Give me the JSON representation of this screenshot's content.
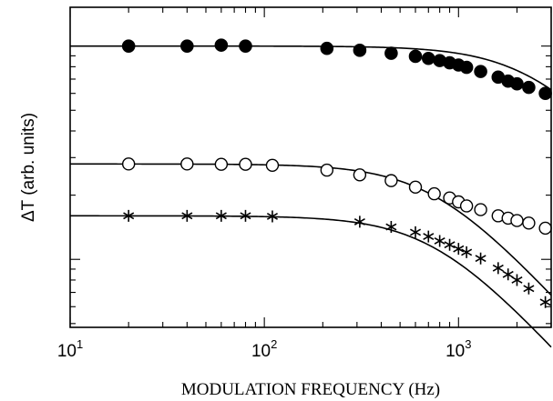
{
  "chart_data": {
    "type": "scatter",
    "title": "",
    "xlabel": "MODULATION FREQUENCY (Hz)",
    "ylabel": "ΔT (arb. units)",
    "xscale": "log",
    "yscale": "log",
    "xlim": [
      10,
      3000
    ],
    "x_ticks": [
      {
        "value": 10,
        "base": "10",
        "exp": "1"
      },
      {
        "value": 100,
        "base": "10",
        "exp": "2"
      },
      {
        "value": 1000,
        "base": "10",
        "exp": "3"
      }
    ],
    "y_tick_labels": "none",
    "legend": "none",
    "grid": false,
    "series": [
      {
        "marker": "filled-circle",
        "x": [
          20,
          40,
          60,
          80,
          210,
          310,
          450,
          600,
          700,
          800,
          900,
          1000,
          1100,
          1300,
          1600,
          1800,
          2000,
          2300,
          2800
        ],
        "y": [
          1.0,
          1.0,
          1.01,
          1.0,
          0.975,
          0.955,
          0.925,
          0.895,
          0.875,
          0.855,
          0.835,
          0.815,
          0.795,
          0.76,
          0.715,
          0.685,
          0.665,
          0.64,
          0.6
        ]
      },
      {
        "marker": "open-circle",
        "x": [
          20,
          40,
          60,
          80,
          110,
          210,
          310,
          450,
          600,
          750,
          900,
          1000,
          1100,
          1300,
          1600,
          1800,
          2000,
          2300,
          2800
        ],
        "y": [
          0.28,
          0.28,
          0.279,
          0.279,
          0.276,
          0.262,
          0.249,
          0.234,
          0.218,
          0.203,
          0.194,
          0.186,
          0.178,
          0.171,
          0.16,
          0.156,
          0.152,
          0.148,
          0.14
        ]
      },
      {
        "marker": "asterisk",
        "x": [
          20,
          40,
          60,
          80,
          110,
          310,
          450,
          600,
          700,
          800,
          900,
          1000,
          1100,
          1300,
          1600,
          1800,
          2000,
          2300,
          2800
        ],
        "y": [
          0.16,
          0.16,
          0.16,
          0.16,
          0.159,
          0.15,
          0.142,
          0.134,
          0.128,
          0.122,
          0.117,
          0.112,
          0.108,
          0.101,
          0.091,
          0.085,
          0.08,
          0.073,
          0.063
        ]
      }
    ],
    "fit_curves": [
      {
        "amplitude": 1.0,
        "corner_hz": 2400
      },
      {
        "amplitude": 0.28,
        "corner_hz": 750
      },
      {
        "amplitude": 0.16,
        "corner_hz": 750
      }
    ],
    "colors": {
      "ink": "#000000",
      "background": "#ffffff"
    }
  }
}
